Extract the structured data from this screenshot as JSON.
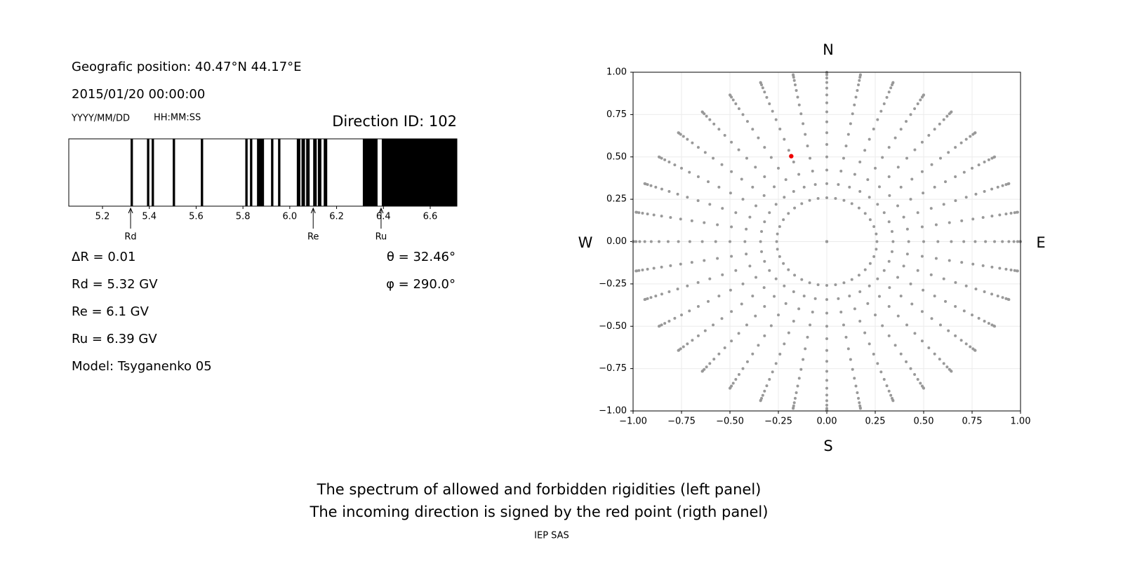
{
  "chart_data": [
    {
      "type": "spectrum",
      "header": [
        "Geografic position: 40.47°N 44.17°E",
        "2015/01/20 00:00:00"
      ],
      "date_format": "YYYY/MM/DD",
      "time_format": "HH:MM:SS",
      "title": "Direction ID: 102",
      "xlim": [
        5.056,
        6.714
      ],
      "xticks": [
        5.2,
        5.4,
        5.6,
        5.8,
        {
          "value": 6,
          "label": "6.0"
        },
        6.2,
        6.4,
        6.6
      ],
      "band_color": "#000000",
      "forbidden_bands": [
        [
          5.32,
          5.33
        ],
        [
          5.39,
          5.4
        ],
        [
          5.41,
          5.42
        ],
        [
          5.5,
          5.51
        ],
        [
          5.62,
          5.63
        ],
        [
          5.81,
          5.82
        ],
        [
          5.83,
          5.84
        ],
        [
          5.86,
          5.89
        ],
        [
          5.92,
          5.93
        ],
        [
          5.95,
          5.96
        ],
        [
          6.03,
          6.045
        ],
        [
          6.05,
          6.065
        ],
        [
          6.07,
          6.085
        ],
        [
          6.1,
          6.115
        ],
        [
          6.12,
          6.135
        ],
        [
          6.145,
          6.16
        ],
        [
          6.312,
          6.375
        ],
        [
          6.393,
          6.714
        ]
      ],
      "markers": [
        {
          "name": "Rd",
          "value": 5.32
        },
        {
          "name": "Re",
          "value": 6.1
        },
        {
          "name": "Ru",
          "value": 6.39
        }
      ],
      "notes_left": [
        "ΔR = 0.01",
        "Rd = 5.32 GV",
        "Re = 6.1 GV",
        "Ru = 6.39 GV",
        "Model: Tsyganenko 05"
      ],
      "notes_right": [
        "θ = 32.46°",
        "φ = 290.0°"
      ]
    },
    {
      "type": "scatter",
      "north": "N",
      "south": "S",
      "west": "W",
      "east": "E",
      "xlim": [
        -1,
        1
      ],
      "ylim": [
        -1,
        1
      ],
      "xticks": [
        {
          "value": -1,
          "label": "−1.00"
        },
        {
          "value": -0.75,
          "label": "−0.75"
        },
        {
          "value": -0.5,
          "label": "−0.50"
        },
        {
          "value": -0.25,
          "label": "−0.25"
        },
        {
          "value": 0,
          "label": "0.00"
        },
        {
          "value": 0.25,
          "label": "0.25"
        },
        {
          "value": 0.5,
          "label": "0.50"
        },
        {
          "value": 0.75,
          "label": "0.75"
        },
        {
          "value": 1,
          "label": "1.00"
        }
      ],
      "yticks": [
        {
          "value": -1,
          "label": "−1.00"
        },
        {
          "value": -0.75,
          "label": "−0.75"
        },
        {
          "value": -0.5,
          "label": "−0.50"
        },
        {
          "value": -0.25,
          "label": "−0.25"
        },
        {
          "value": 0,
          "label": "0.00"
        },
        {
          "value": 0.25,
          "label": "0.25"
        },
        {
          "value": 0.5,
          "label": "0.50"
        },
        {
          "value": 0.75,
          "label": "0.75"
        },
        {
          "value": 1,
          "label": "1.00"
        }
      ],
      "grid": true,
      "grid_directions": {
        "color": "#999999",
        "zenith": [
          0,
          15,
          20,
          25,
          30,
          35,
          40,
          45,
          50,
          55,
          60,
          65,
          70,
          75,
          80,
          85,
          90
        ],
        "azimuth": [
          0,
          10,
          20,
          30,
          40,
          50,
          60,
          70,
          80,
          90,
          100,
          110,
          120,
          130,
          140,
          150,
          160,
          170,
          180,
          190,
          200,
          210,
          220,
          230,
          240,
          250,
          260,
          270,
          280,
          290,
          300,
          310,
          320,
          330,
          340,
          350
        ]
      },
      "direction": {
        "theta": 32.46,
        "phi": 290,
        "color": "#ee0000"
      }
    }
  ],
  "footer": {
    "lines": [
      "The spectrum of allowed and forbidden rigidities (left panel)",
      "The incoming direction is signed by the red point (rigth panel)"
    ],
    "credit": "IEP SAS"
  }
}
